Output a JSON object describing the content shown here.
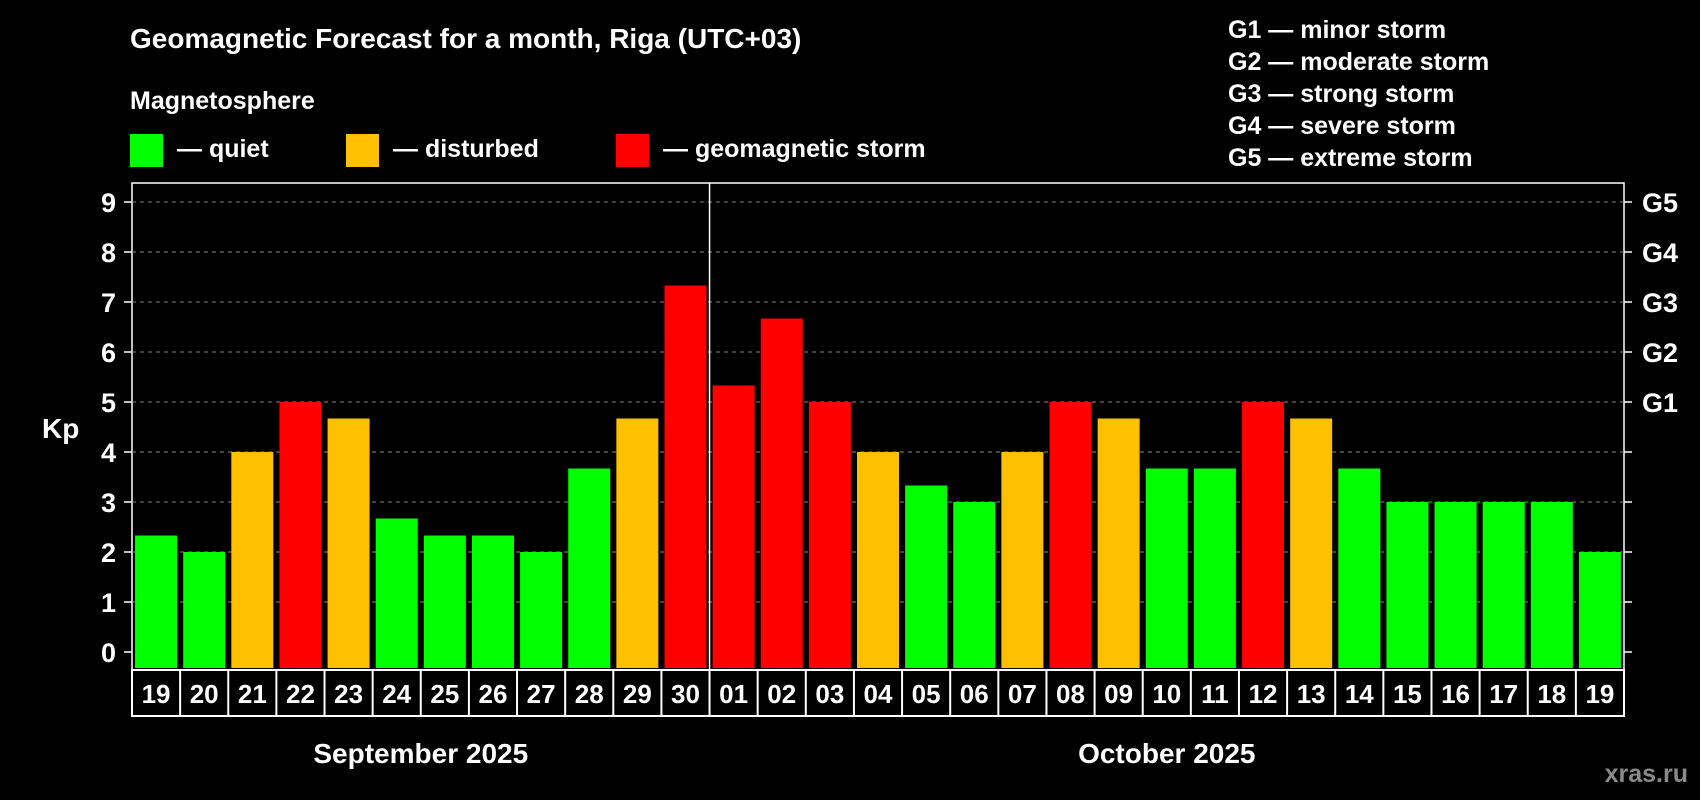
{
  "header": {
    "title": "Geomagnetic Forecast for a month, Riga (UTC+03)",
    "subtitle": "Magnetosphere"
  },
  "legend": [
    {
      "label": "— quiet",
      "color": "#00ff00"
    },
    {
      "label": "— disturbed",
      "color": "#ffc000"
    },
    {
      "label": "— geomagnetic storm",
      "color": "#ff0000"
    }
  ],
  "storm_scale": [
    "G1 — minor storm",
    "G2 — moderate storm",
    "G3 — strong storm",
    "G4 — severe storm",
    "G5 — extreme storm"
  ],
  "watermark": "xras.ru",
  "colors": {
    "quiet": "#00ff00",
    "disturbed": "#ffc000",
    "storm": "#ff0000",
    "background": "#000000",
    "grid": "#888888"
  },
  "chart_data": {
    "type": "bar",
    "title": "Geomagnetic Forecast for a month, Riga (UTC+03)",
    "ylabel": "Kp",
    "ylim": [
      0,
      9
    ],
    "yticks": [
      0,
      1,
      2,
      3,
      4,
      5,
      6,
      7,
      8,
      9
    ],
    "right_ticks": [
      {
        "value": 5,
        "label": "G1"
      },
      {
        "value": 6,
        "label": "G2"
      },
      {
        "value": 7,
        "label": "G3"
      },
      {
        "value": 8,
        "label": "G4"
      },
      {
        "value": 9,
        "label": "G5"
      }
    ],
    "grid": "dashed horizontal",
    "categories": [
      "19",
      "20",
      "21",
      "22",
      "23",
      "24",
      "25",
      "26",
      "27",
      "28",
      "29",
      "30",
      "01",
      "02",
      "03",
      "04",
      "05",
      "06",
      "07",
      "08",
      "09",
      "10",
      "11",
      "12",
      "13",
      "14",
      "15",
      "16",
      "17",
      "18",
      "19"
    ],
    "values": [
      2.33,
      2.0,
      4.0,
      5.0,
      4.67,
      2.67,
      2.33,
      2.33,
      2.0,
      3.67,
      4.67,
      7.33,
      5.33,
      6.67,
      5.0,
      4.0,
      3.33,
      3.0,
      4.0,
      5.0,
      4.67,
      3.67,
      3.67,
      5.0,
      4.67,
      3.67,
      3.0,
      3.0,
      3.0,
      3.0,
      2.0
    ],
    "levels": [
      "quiet",
      "quiet",
      "disturbed",
      "storm",
      "disturbed",
      "quiet",
      "quiet",
      "quiet",
      "quiet",
      "quiet",
      "disturbed",
      "storm",
      "storm",
      "storm",
      "storm",
      "disturbed",
      "quiet",
      "quiet",
      "disturbed",
      "storm",
      "disturbed",
      "quiet",
      "quiet",
      "storm",
      "disturbed",
      "quiet",
      "quiet",
      "quiet",
      "quiet",
      "quiet",
      "quiet"
    ],
    "months": [
      {
        "label": "September 2025",
        "start_index": 0,
        "count": 12
      },
      {
        "label": "October 2025",
        "start_index": 12,
        "count": 19
      }
    ],
    "month_divider_after_index": 11
  }
}
